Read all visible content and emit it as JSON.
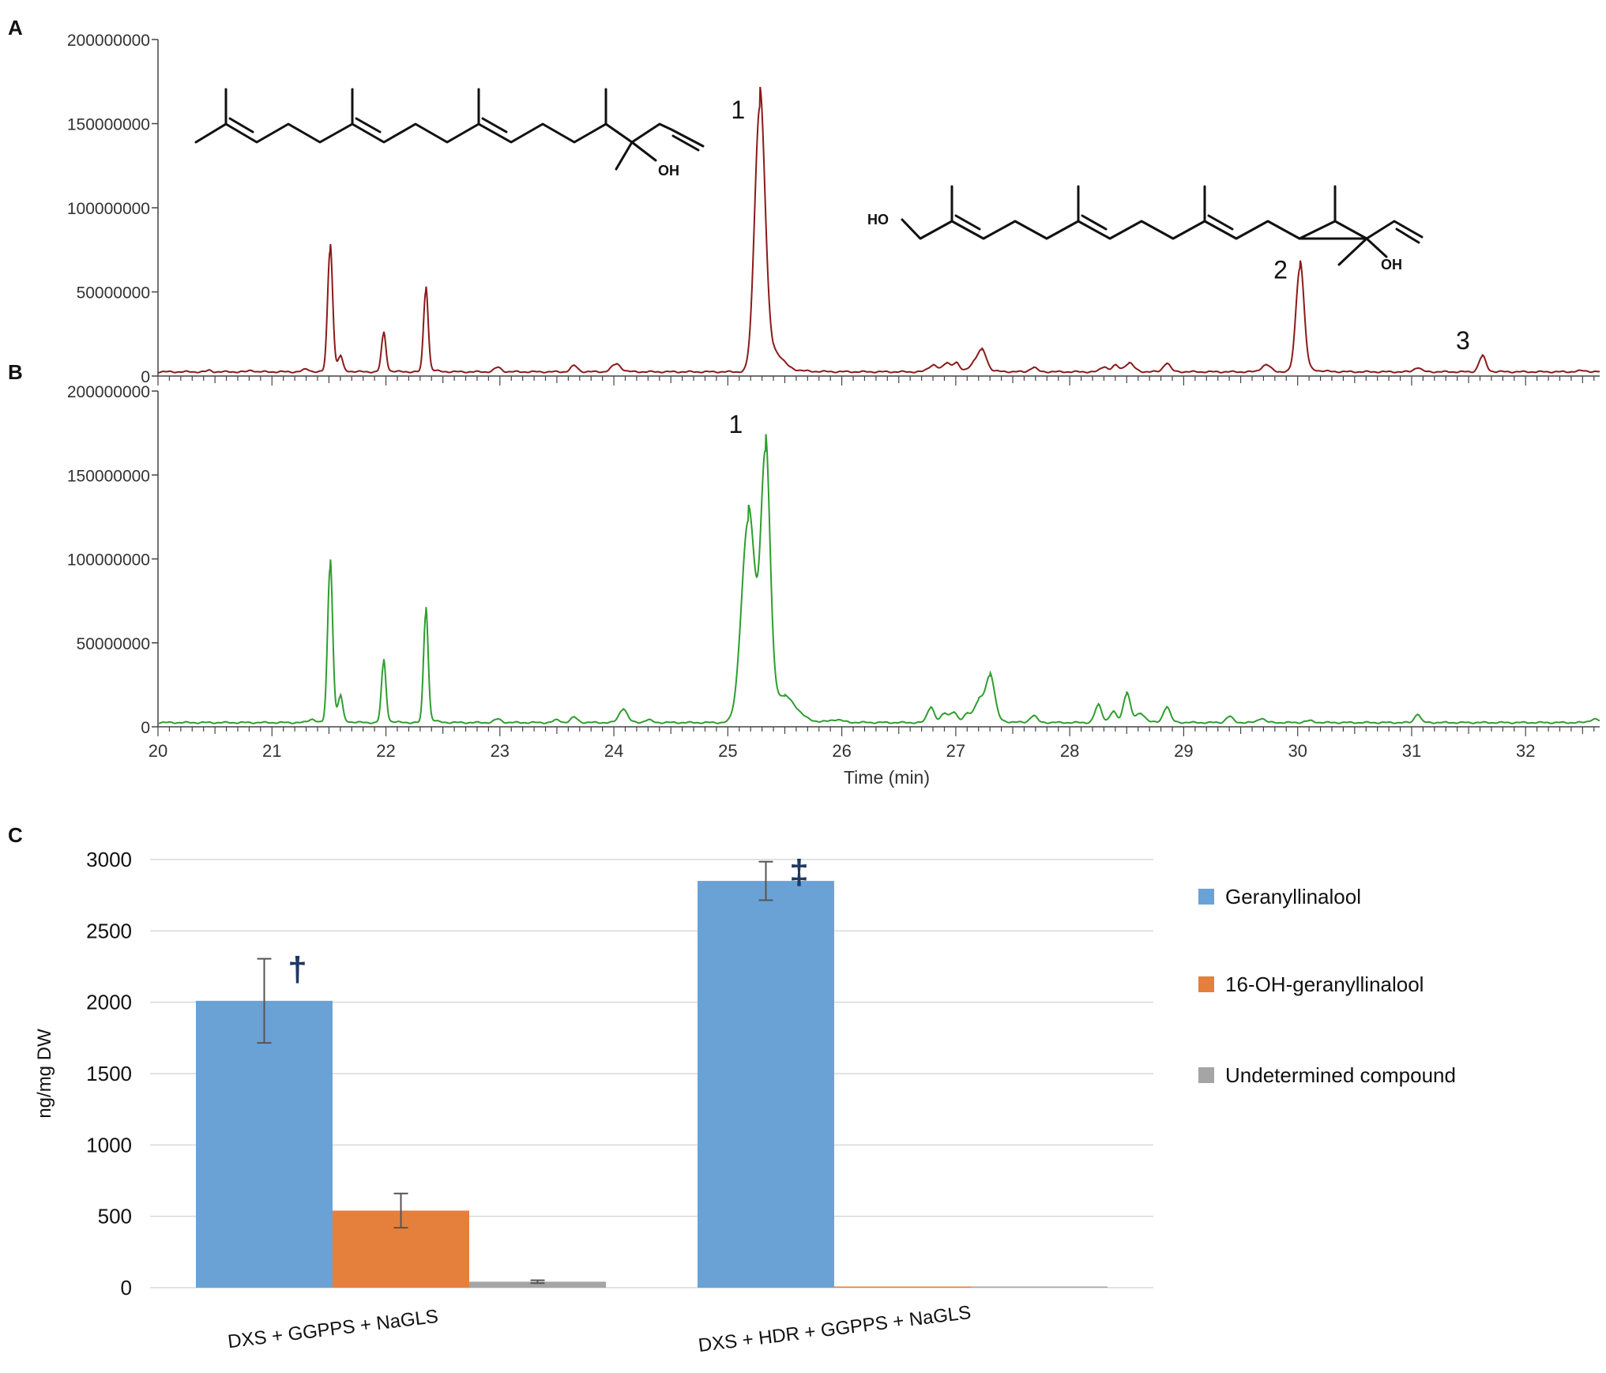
{
  "panel_labels": {
    "a": "A",
    "b": "B",
    "c": "C"
  },
  "structure_labels": {
    "oh1": "OH",
    "ho2": "HO",
    "oh2": "OH"
  },
  "chart_data": [
    {
      "type": "line",
      "panel": "A",
      "xlabel": "",
      "ylabel": "",
      "xlim": [
        20,
        32.65
      ],
      "ylim": [
        0,
        200000000
      ],
      "yticks": [
        0,
        50000000,
        100000000,
        150000000,
        200000000
      ],
      "ytick_labels": [
        "0",
        "50000000",
        "100000000",
        "150000000",
        "200000000"
      ],
      "color": "#8b1a1a",
      "baseline": 2500000,
      "peaks": [
        {
          "t": 20.45,
          "h": 800000,
          "w": 0.02
        },
        {
          "t": 20.82,
          "h": 1000000,
          "w": 0.02
        },
        {
          "t": 21.3,
          "h": 1500000,
          "w": 0.03
        },
        {
          "t": 21.51,
          "h": 72000000,
          "w": 0.022
        },
        {
          "t": 21.6,
          "h": 8000000,
          "w": 0.02
        },
        {
          "t": 21.98,
          "h": 22000000,
          "w": 0.02
        },
        {
          "t": 22.35,
          "h": 48000000,
          "w": 0.02
        },
        {
          "t": 22.98,
          "h": 2500000,
          "w": 0.03
        },
        {
          "t": 23.65,
          "h": 3500000,
          "w": 0.03
        },
        {
          "t": 24.02,
          "h": 4500000,
          "w": 0.04
        },
        {
          "t": 25.28,
          "h": 155000000,
          "w": 0.045
        },
        {
          "t": 25.4,
          "h": 8000000,
          "w": 0.08
        },
        {
          "t": 26.8,
          "h": 4000000,
          "w": 0.04
        },
        {
          "t": 26.92,
          "h": 5000000,
          "w": 0.03
        },
        {
          "t": 27.0,
          "h": 5000000,
          "w": 0.03
        },
        {
          "t": 27.15,
          "h": 4000000,
          "w": 0.04
        },
        {
          "t": 27.23,
          "h": 12000000,
          "w": 0.04
        },
        {
          "t": 27.68,
          "h": 2500000,
          "w": 0.03
        },
        {
          "t": 28.3,
          "h": 3000000,
          "w": 0.03
        },
        {
          "t": 28.4,
          "h": 3500000,
          "w": 0.03
        },
        {
          "t": 28.52,
          "h": 5000000,
          "w": 0.04
        },
        {
          "t": 28.85,
          "h": 5000000,
          "w": 0.03
        },
        {
          "t": 29.72,
          "h": 4000000,
          "w": 0.04
        },
        {
          "t": 30.02,
          "h": 62000000,
          "w": 0.035
        },
        {
          "t": 31.05,
          "h": 2500000,
          "w": 0.03
        },
        {
          "t": 31.62,
          "h": 9000000,
          "w": 0.03
        },
        {
          "t": 32.5,
          "h": 600000,
          "w": 0.05
        }
      ],
      "annotations": [
        {
          "text": "1",
          "t": 25.09,
          "v": 153000000
        },
        {
          "text": "2",
          "t": 29.85,
          "v": 58000000
        },
        {
          "text": "3",
          "t": 31.45,
          "v": 16000000
        }
      ]
    },
    {
      "type": "line",
      "panel": "B",
      "xlabel": "Time (min)",
      "ylabel": "",
      "xlim": [
        20,
        32.65
      ],
      "ylim": [
        0,
        200000000
      ],
      "xticks": [
        20,
        21,
        22,
        23,
        24,
        25,
        26,
        27,
        28,
        29,
        30,
        31,
        32
      ],
      "xtick_labels": [
        "20",
        "21",
        "22",
        "23",
        "24",
        "25",
        "26",
        "27",
        "28",
        "29",
        "30",
        "31",
        "32"
      ],
      "yticks": [
        0,
        50000000,
        100000000,
        150000000,
        200000000
      ],
      "ytick_labels": [
        "0",
        "50000000",
        "100000000",
        "150000000",
        "200000000"
      ],
      "color": "#2e9e2e",
      "baseline": 2500000,
      "peaks": [
        {
          "t": 21.35,
          "h": 2000000,
          "w": 0.03
        },
        {
          "t": 21.51,
          "h": 92000000,
          "w": 0.022
        },
        {
          "t": 21.6,
          "h": 14000000,
          "w": 0.02
        },
        {
          "t": 21.98,
          "h": 35000000,
          "w": 0.02
        },
        {
          "t": 22.35,
          "h": 65000000,
          "w": 0.02
        },
        {
          "t": 22.98,
          "h": 2000000,
          "w": 0.03
        },
        {
          "t": 23.5,
          "h": 1500000,
          "w": 0.03
        },
        {
          "t": 23.65,
          "h": 3000000,
          "w": 0.03
        },
        {
          "t": 24.08,
          "h": 8000000,
          "w": 0.035
        },
        {
          "t": 24.3,
          "h": 1500000,
          "w": 0.03
        },
        {
          "t": 25.18,
          "h": 120000000,
          "w": 0.06
        },
        {
          "t": 25.33,
          "h": 150000000,
          "w": 0.04
        },
        {
          "t": 25.5,
          "h": 12000000,
          "w": 0.1
        },
        {
          "t": 25.95,
          "h": 1500000,
          "w": 0.05
        },
        {
          "t": 26.78,
          "h": 9000000,
          "w": 0.03
        },
        {
          "t": 26.9,
          "h": 5000000,
          "w": 0.03
        },
        {
          "t": 26.98,
          "h": 6000000,
          "w": 0.03
        },
        {
          "t": 27.1,
          "h": 5000000,
          "w": 0.03
        },
        {
          "t": 27.2,
          "h": 12000000,
          "w": 0.04
        },
        {
          "t": 27.3,
          "h": 27000000,
          "w": 0.04
        },
        {
          "t": 27.68,
          "h": 4000000,
          "w": 0.03
        },
        {
          "t": 28.25,
          "h": 10000000,
          "w": 0.03
        },
        {
          "t": 28.38,
          "h": 6000000,
          "w": 0.03
        },
        {
          "t": 28.5,
          "h": 17000000,
          "w": 0.03
        },
        {
          "t": 28.62,
          "h": 5000000,
          "w": 0.04
        },
        {
          "t": 28.85,
          "h": 9000000,
          "w": 0.03
        },
        {
          "t": 29.4,
          "h": 3500000,
          "w": 0.03
        },
        {
          "t": 29.68,
          "h": 2500000,
          "w": 0.03
        },
        {
          "t": 30.1,
          "h": 1000000,
          "w": 0.04
        },
        {
          "t": 31.05,
          "h": 5000000,
          "w": 0.025
        },
        {
          "t": 32.6,
          "h": 2000000,
          "w": 0.04
        }
      ],
      "annotations": [
        {
          "text": "1",
          "t": 25.07,
          "v": 175000000
        }
      ]
    },
    {
      "type": "bar",
      "panel": "C",
      "categories": [
        "DXS + GGPPS + NaGLS",
        "DXS + HDR + GGPPS + NaGLS"
      ],
      "ylabel": "ng/mg DW",
      "ylim": [
        0,
        3000
      ],
      "yticks": [
        0,
        500,
        1000,
        1500,
        2000,
        2500,
        3000
      ],
      "ytick_labels": [
        "0",
        "500",
        "1000",
        "1500",
        "2000",
        "2500",
        "3000"
      ],
      "grid": true,
      "legend_position": "right",
      "series": [
        {
          "name": "Geranyllinalool",
          "color": "#6aa2d5",
          "values": [
            2010,
            2850
          ],
          "errors": [
            295,
            135
          ],
          "marks": [
            "†",
            "‡"
          ]
        },
        {
          "name": "16-OH-geranyllinalool",
          "color": "#e57f3c",
          "values": [
            540,
            0
          ],
          "errors": [
            120,
            0
          ],
          "marks": [
            "",
            ""
          ]
        },
        {
          "name": "Undetermined compound",
          "color": "#a5a5a5",
          "values": [
            42,
            0
          ],
          "errors": [
            10,
            0
          ],
          "marks": [
            "",
            ""
          ]
        }
      ]
    }
  ]
}
